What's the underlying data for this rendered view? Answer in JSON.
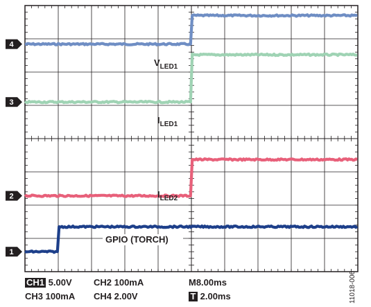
{
  "chart_data": {
    "type": "line",
    "title": "",
    "grid": {
      "divisions_x": 10,
      "divisions_y": 8,
      "visible": true
    },
    "x_axis": {
      "unit": "ms",
      "per_division": 2.0,
      "divisions": 10,
      "range": [
        0,
        20
      ]
    },
    "y_axis": {
      "unit": "div",
      "range": [
        0,
        8
      ]
    },
    "series": [
      {
        "name": "VLED1",
        "name_main": "V",
        "name_sub": "LED1",
        "channel": "4",
        "color": "#6f8ec4",
        "x": [
          0,
          9.95,
          10.05,
          20
        ],
        "y": [
          6.84,
          6.84,
          7.7,
          7.7
        ]
      },
      {
        "name": "ILED1",
        "name_main": "I",
        "name_sub": "LED1",
        "channel": "3",
        "color": "#9fd3b4",
        "x": [
          0,
          9.95,
          10.05,
          20
        ],
        "y": [
          5.1,
          5.1,
          6.52,
          6.52
        ]
      },
      {
        "name": "ILED2",
        "name_main": "I",
        "name_sub": "LED2",
        "channel": "2",
        "color": "#e8607a",
        "x": [
          0,
          9.95,
          10.05,
          20
        ],
        "y": [
          2.28,
          2.28,
          3.37,
          3.37
        ]
      },
      {
        "name": "GPIO (TORCH)",
        "name_main": "GPIO (TORCH)",
        "name_sub": "",
        "channel": "1",
        "color": "#1d3f8a",
        "x": [
          0,
          1.95,
          2.05,
          20
        ],
        "y": [
          0.6,
          0.6,
          1.35,
          1.35
        ]
      }
    ],
    "channel_markers": [
      {
        "num": "4",
        "y": 6.84
      },
      {
        "num": "3",
        "y": 5.1
      },
      {
        "num": "2",
        "y": 2.28
      },
      {
        "num": "1",
        "y": 0.6
      }
    ]
  },
  "readout": {
    "ch1_chip": "CH1",
    "ch1_value": "5.00V",
    "ch2": "CH2  100mA",
    "timebase": "M8.00ms",
    "ch3": "CH3  100mA",
    "ch4": "CH4  2.00V",
    "trigger_chip": "T",
    "trigger_value": "2.00ms"
  },
  "figure_id": "11018-006"
}
